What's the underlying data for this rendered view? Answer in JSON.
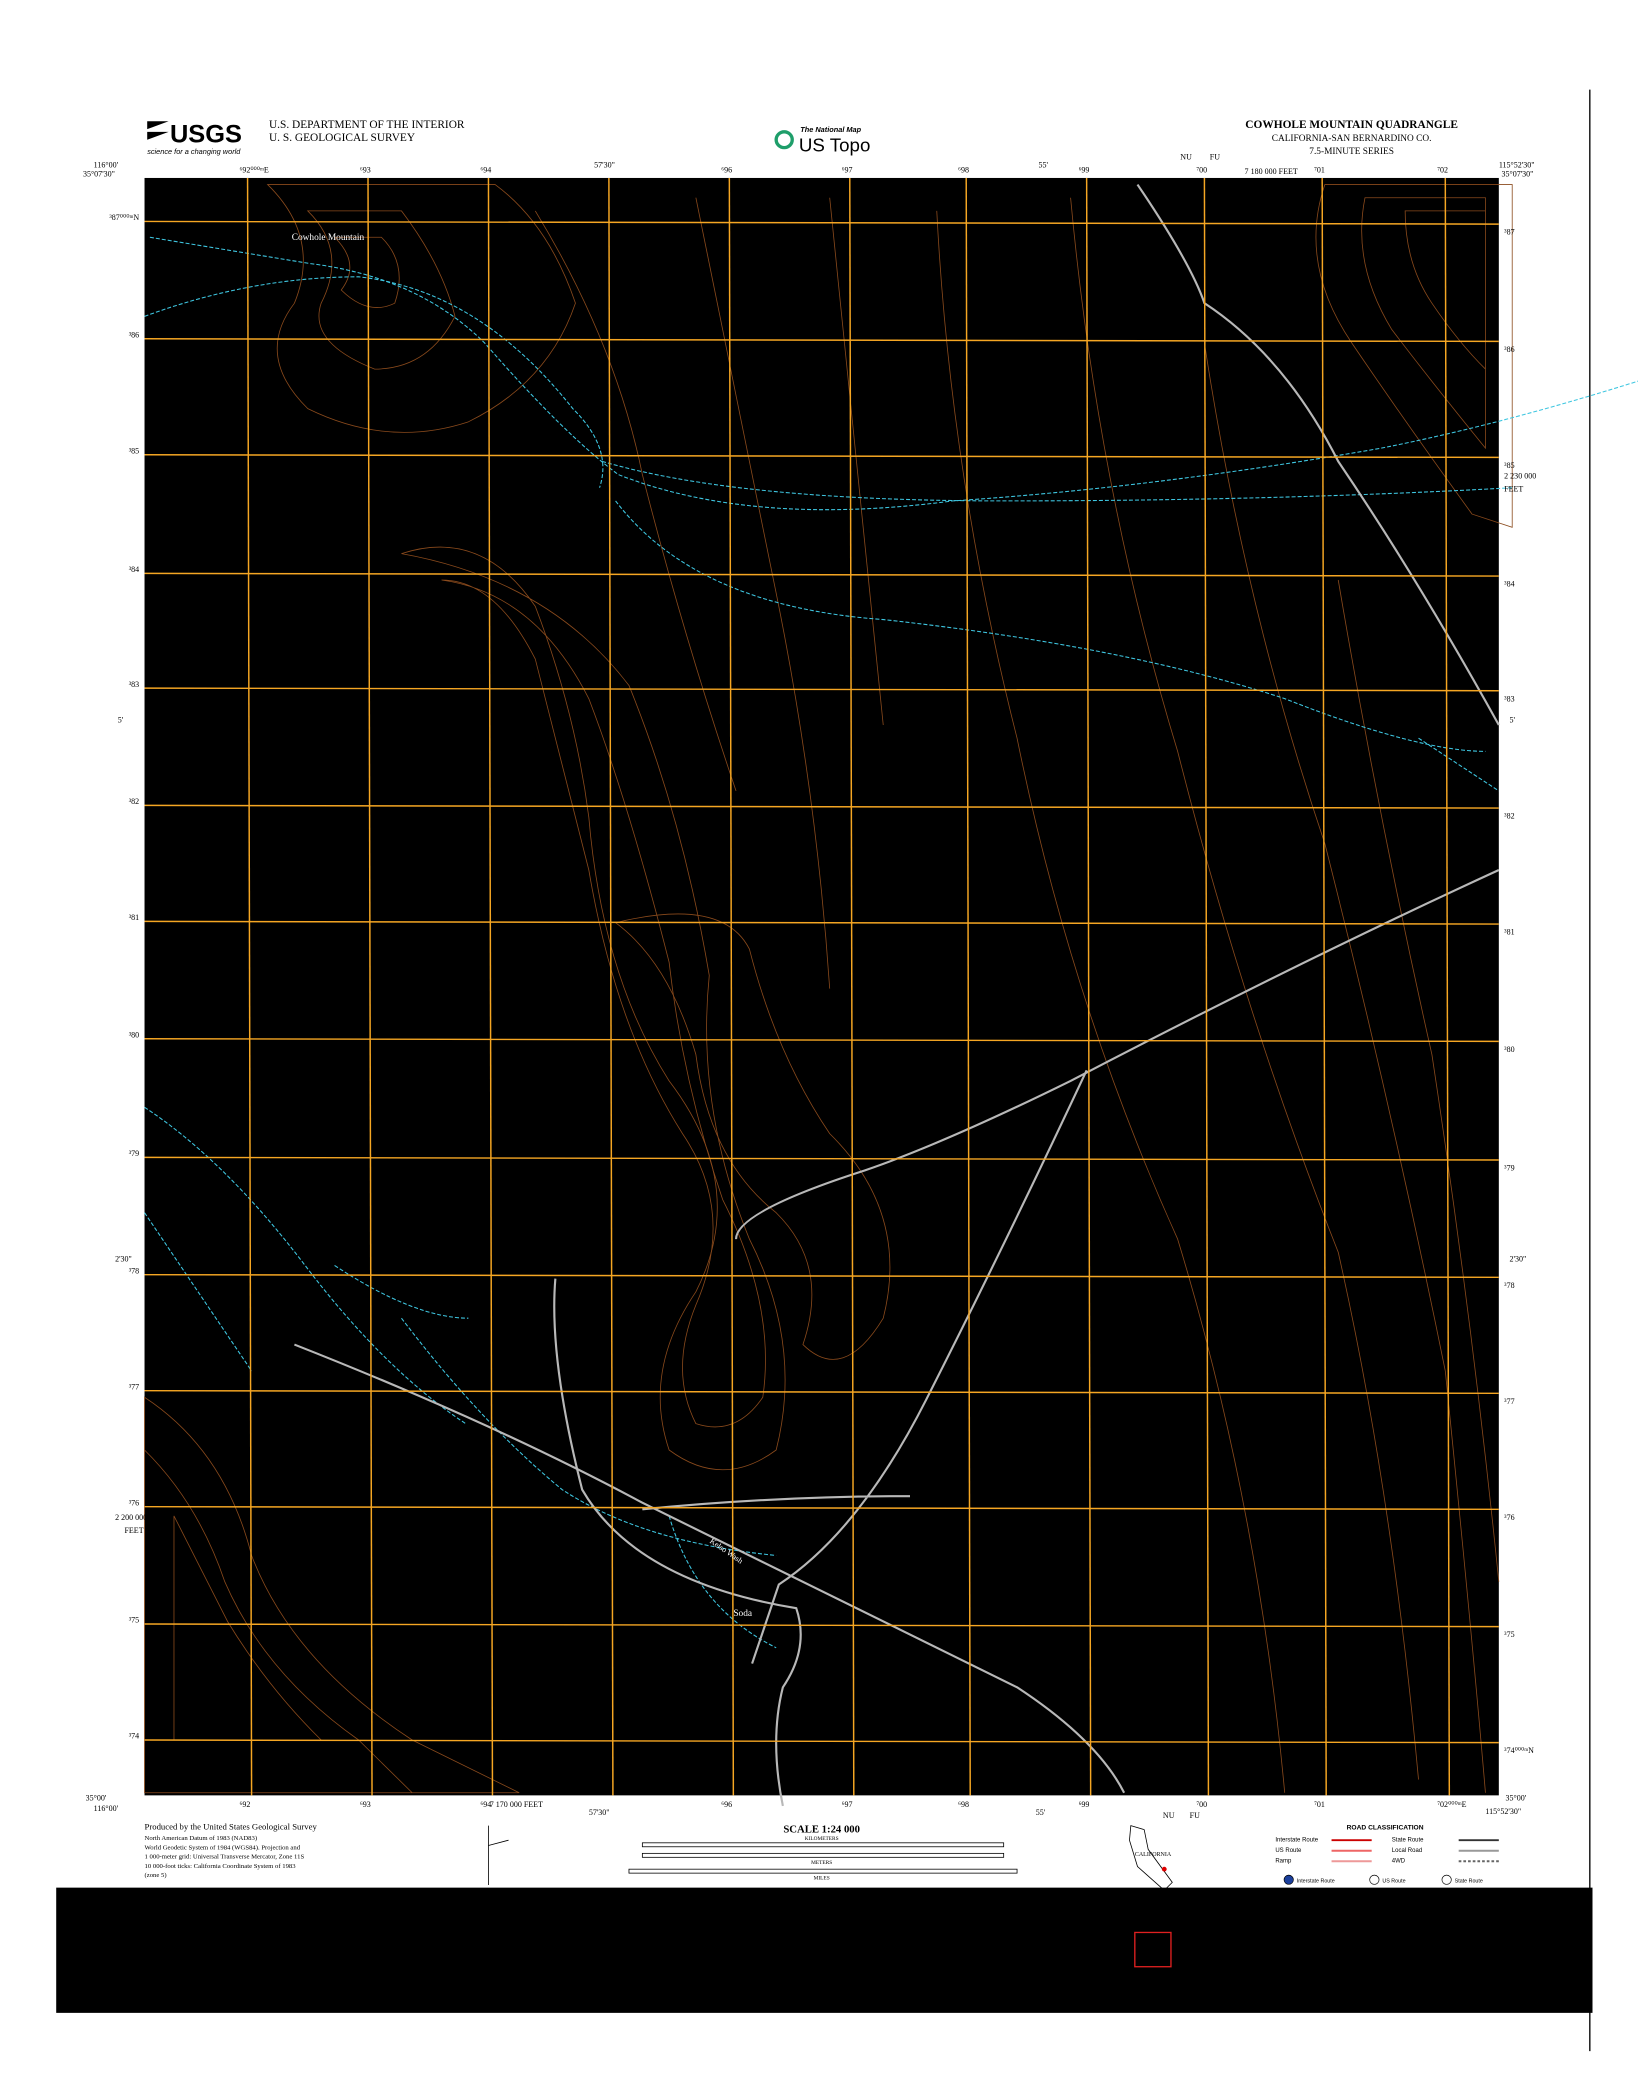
{
  "header": {
    "logo": "USGS",
    "logo_tagline": "science for a changing world",
    "agency_line1": "U.S. DEPARTMENT OF THE INTERIOR",
    "agency_line2": "U. S. GEOLOGICAL SURVEY",
    "national_map": "The National Map",
    "us_topo": "US Topo",
    "quad_title": "COWHOLE MOUNTAIN QUADRANGLE",
    "quad_county": "CALIFORNIA-SAN BERNARDINO CO.",
    "quad_series": "7.5-MINUTE SERIES"
  },
  "map": {
    "corners": {
      "nw_lon": "116°00'",
      "nw_lat": "35°07'30\"",
      "ne_lon": "115°52'30\"",
      "ne_lat": "35°07'30\"",
      "sw_lon": "116°00'",
      "sw_lat": "35°00'",
      "se_lon": "115°52'30\"",
      "se_lat": "35°00'"
    },
    "top_minutes": [
      "57'30\"",
      "55'"
    ],
    "bottom_minutes": [
      "57'30\"",
      "55'"
    ],
    "side_minutes": [
      "5'",
      "2'30\""
    ],
    "feet_top": "7 180 000 FEET",
    "feet_bottom": "7 170 000 FEET",
    "feet_right": "2 230 000",
    "feet_right_unit": "FEET",
    "feet_left": "2 200 000",
    "feet_left_unit": "FEET",
    "grid_zone_top": [
      "NU",
      "FU"
    ],
    "grid_zone_bottom": [
      "NU",
      "FU"
    ],
    "easting_top": [
      "⁶92⁰⁰⁰ᵐE",
      "⁶93",
      "⁶94",
      "⁶96",
      "⁶97",
      "⁶98",
      "⁶99",
      "⁷00",
      "⁷01",
      "⁷02"
    ],
    "easting_bottom": [
      "⁶92",
      "⁶93",
      "⁶94",
      "⁶96",
      "⁶97",
      "⁶98",
      "⁶99",
      "⁷00",
      "⁷01",
      "⁷02⁰⁰⁰ᵐE"
    ],
    "northing_left": [
      "³87⁰⁰⁰ᵐN",
      "³86",
      "³85",
      "³84",
      "³83",
      "³82",
      "³81",
      "³80",
      "³79",
      "³78",
      "³77",
      "³76",
      "³75",
      "³74"
    ],
    "northing_right": [
      "³87",
      "³86",
      "³85",
      "³84",
      "³83",
      "³82",
      "³81",
      "³80",
      "³79",
      "³78",
      "³77",
      "³76",
      "³75",
      "³74⁰⁰⁰ᵐN"
    ],
    "place_names": [
      "Cowhole Mountain",
      "Soda",
      "Kelso Wash"
    ]
  },
  "footer": {
    "produced_by": "Produced by the United States Geological Survey",
    "datum_lines": [
      "North American Datum of 1983 (NAD83)",
      "World Geodetic System of 1984 (WGS84). Projection and",
      "1 000-meter grid: Universal Transverse Mercator, Zone 11S",
      "10 000-foot ticks: California Coordinate System of 1983",
      "(zone 5)"
    ],
    "scale": "SCALE 1:24 000",
    "kilometers": "KILOMETERS",
    "meters": "METERS",
    "miles": "MILES",
    "state": "CALIFORNIA",
    "road_title": "ROAD CLASSIFICATION",
    "road_left": [
      "Interstate Route",
      "US Route",
      "Ramp"
    ],
    "road_right": [
      "State Route",
      "Local Road",
      "4WD"
    ],
    "shield_labels": [
      "Interstate Route",
      "US Route",
      "State Route"
    ]
  }
}
